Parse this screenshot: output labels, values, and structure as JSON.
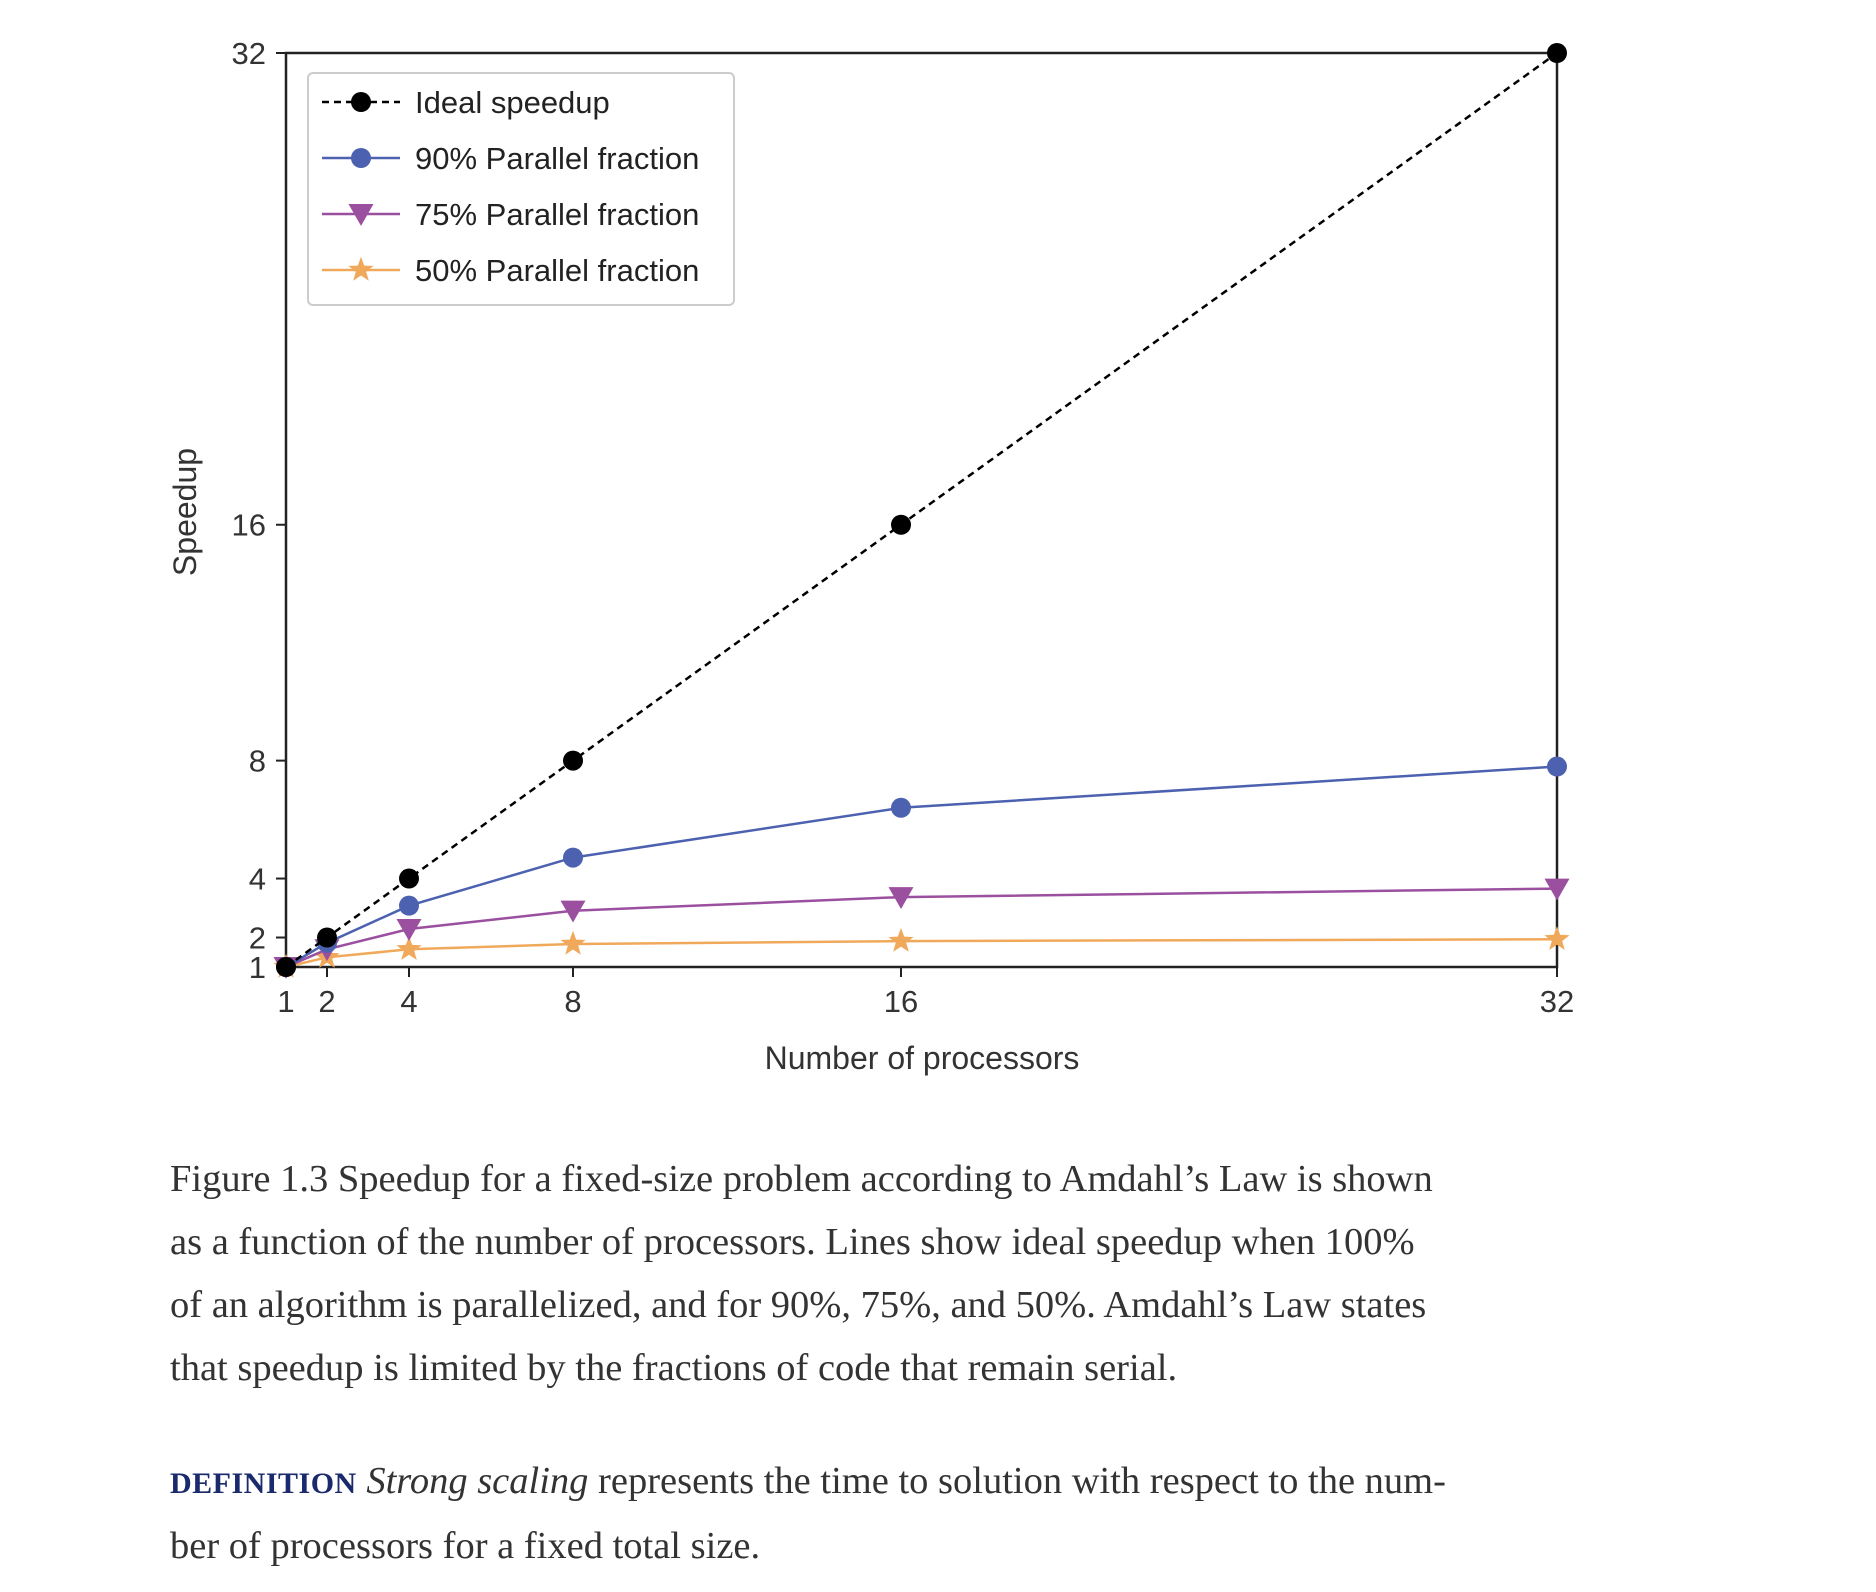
{
  "chart_data": {
    "type": "line",
    "xlabel": "Number of processors",
    "ylabel": "Speedup",
    "xlim": [
      1,
      32
    ],
    "ylim": [
      1,
      32
    ],
    "x_ticks": [
      1,
      2,
      4,
      8,
      16,
      32
    ],
    "y_ticks": [
      1,
      2,
      4,
      8,
      16,
      32
    ],
    "grid": false,
    "legend_position": "top-left",
    "x": [
      1,
      2,
      4,
      8,
      16,
      32
    ],
    "series": [
      {
        "name": "Ideal speedup",
        "values": [
          1,
          2,
          4,
          8,
          16,
          32
        ],
        "color": "#000000",
        "marker": "circle",
        "line_style": "dashed"
      },
      {
        "name": "90% Parallel fraction",
        "values": [
          1,
          1.82,
          3.08,
          4.71,
          6.4,
          7.8
        ],
        "color": "#4c61b0",
        "marker": "circle",
        "line_style": "solid"
      },
      {
        "name": "75% Parallel fraction",
        "values": [
          1,
          1.6,
          2.29,
          2.91,
          3.37,
          3.66
        ],
        "color": "#9b4f9f",
        "marker": "triangle-down",
        "line_style": "solid"
      },
      {
        "name": "50% Parallel fraction",
        "values": [
          1,
          1.33,
          1.6,
          1.78,
          1.88,
          1.94
        ],
        "color": "#f0a95a",
        "marker": "star",
        "line_style": "solid"
      }
    ]
  },
  "caption": {
    "lines": [
      "Figure 1.3 Speedup for a fixed-size problem according to Amdahl’s Law is shown",
      "as a function of the number of processors. Lines show ideal speedup when 100%",
      "of an algorithm is parallelized, and for 90%, 75%, and 50%. Amdahl’s Law states",
      "that speedup is limited by the fractions of code that remain serial."
    ]
  },
  "definition": {
    "label": "DEFINITION",
    "term": "Strong scaling",
    "line1_rest": " represents the time to solution with respect to the num-",
    "line2": "ber of processors for a fixed total size."
  }
}
